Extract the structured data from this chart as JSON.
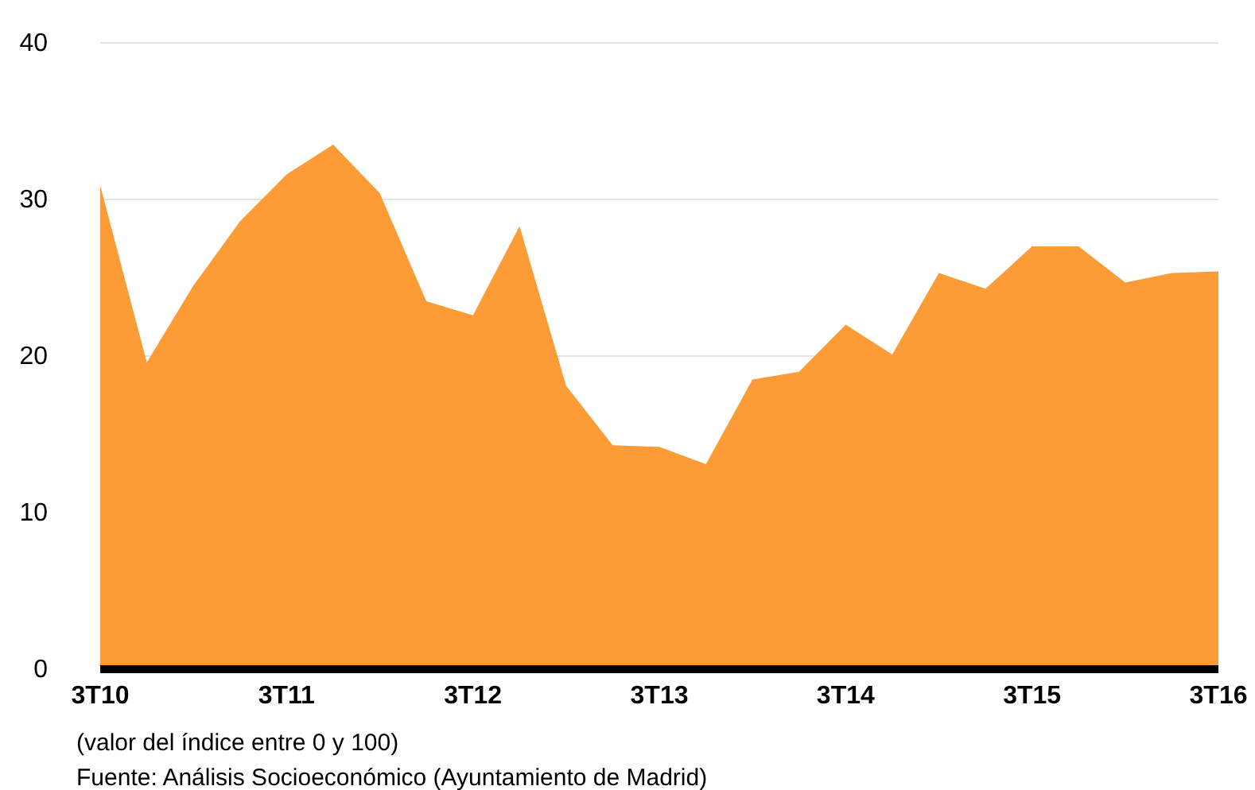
{
  "chart_data": {
    "type": "area",
    "categories": [
      "3T10",
      null,
      null,
      null,
      "3T11",
      null,
      null,
      null,
      "3T12",
      null,
      null,
      null,
      "3T13",
      null,
      null,
      null,
      "3T14",
      null,
      null,
      null,
      "3T15",
      null,
      null,
      null,
      "3T16"
    ],
    "series": [
      {
        "color": "#fd9b37",
        "values": [
          30.9,
          19.6,
          24.5,
          28.6,
          31.6,
          33.5,
          30.4,
          23.5,
          22.6,
          28.3,
          18.1,
          14.3,
          14.2,
          13.1,
          18.5,
          19.0,
          22.0,
          20.1,
          25.3,
          24.3,
          27.0,
          27.0,
          24.7,
          25.3,
          25.4
        ]
      }
    ],
    "ylim": [
      0,
      40
    ],
    "yticks": [
      0,
      10,
      20,
      30,
      40
    ],
    "grid": "y",
    "annotations": [
      "(valor del índice entre 0 y 100)",
      "Fuente: Análisis Socioeconómico (Ayuntamiento de Madrid)"
    ]
  }
}
